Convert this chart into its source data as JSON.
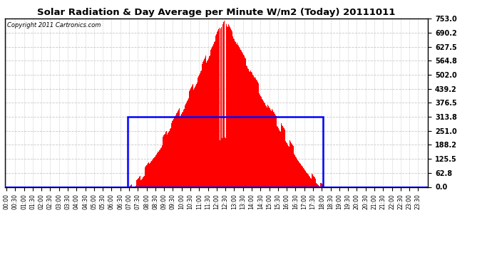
{
  "title": "Solar Radiation & Day Average per Minute W/m2 (Today) 20111011",
  "copyright": "Copyright 2011 Cartronics.com",
  "ymax": 753.0,
  "yticks": [
    0.0,
    62.8,
    125.5,
    188.2,
    251.0,
    313.8,
    376.5,
    439.2,
    502.0,
    564.8,
    627.5,
    690.2,
    753.0
  ],
  "bg_color": "#ffffff",
  "bar_color": "#ff0000",
  "grid_color": "#c8c8c8",
  "blue_color": "#0000ff",
  "sunrise_minute": 415,
  "sunset_minute": 1085,
  "peak_minute": 745,
  "peak_value": 753.0,
  "day_avg": 313.8,
  "total_minutes": 1440,
  "figwidth": 6.9,
  "figheight": 3.75,
  "dpi": 100
}
